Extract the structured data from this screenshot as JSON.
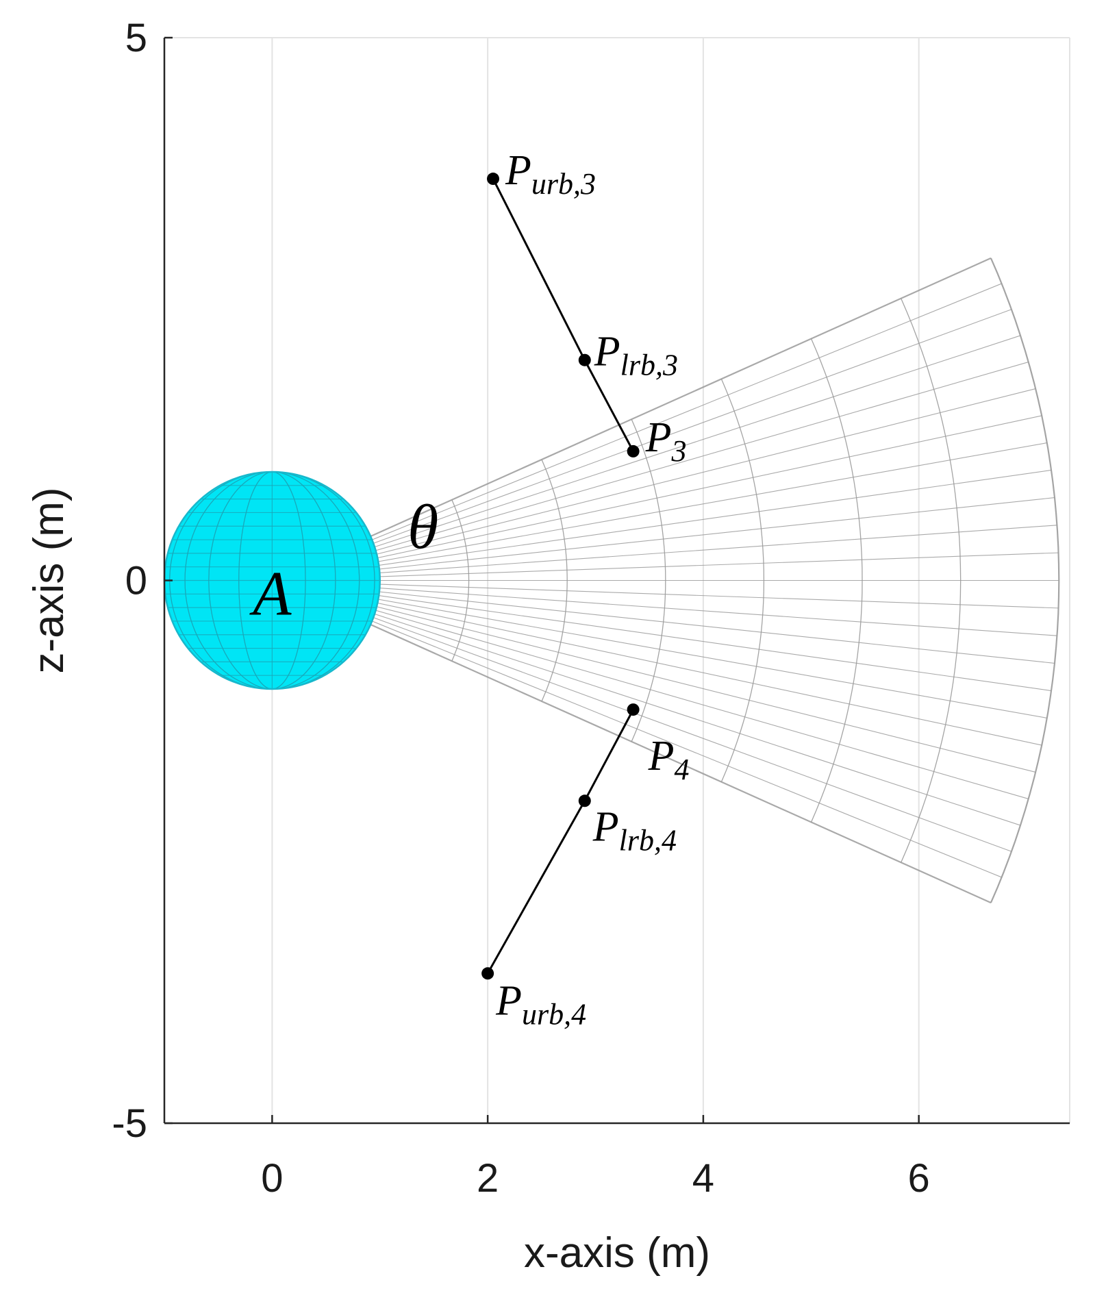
{
  "chart_data": {
    "type": "scatter",
    "title": "",
    "xlabel": "x-axis (m)",
    "ylabel": "z-axis (m)",
    "xlim": [
      -1,
      7.4
    ],
    "ylim": [
      -5,
      5
    ],
    "x_ticks": [
      0,
      2,
      4,
      6
    ],
    "x_tick_labels": [
      "0",
      "2",
      "4",
      "6"
    ],
    "y_ticks": [
      -5,
      0,
      5
    ],
    "y_tick_labels": [
      "-5",
      "0",
      "5"
    ],
    "grid": "vertical",
    "colors": {
      "sphere": "#00e5f5",
      "sphere_grid": "#1aa6b8",
      "cone": "#9a9a9a",
      "points": "#000000",
      "grid": "#e3e3e3"
    },
    "sphere": {
      "label": "A",
      "center": [
        0,
        0
      ],
      "radius": 1.0
    },
    "cone": {
      "label": "θ",
      "apex": [
        0,
        0
      ],
      "half_angle_deg": 24,
      "length": 7.3
    },
    "points": [
      {
        "id": "urb3",
        "label": "P",
        "sub": "urb,3",
        "x": 2.05,
        "z": 3.7
      },
      {
        "id": "lrb3",
        "label": "P",
        "sub": "lrb,3",
        "x": 2.9,
        "z": 2.03
      },
      {
        "id": "p3",
        "label": "P",
        "sub": "3",
        "x": 3.35,
        "z": 1.19
      },
      {
        "id": "p4",
        "label": "P",
        "sub": "4",
        "x": 3.35,
        "z": -1.19
      },
      {
        "id": "lrb4",
        "label": "P",
        "sub": "lrb,4",
        "x": 2.9,
        "z": -2.03
      },
      {
        "id": "urb4",
        "label": "P",
        "sub": "urb,4",
        "x": 2.0,
        "z": -3.62
      }
    ],
    "segments": [
      [
        "urb3",
        "lrb3"
      ],
      [
        "lrb3",
        "p3"
      ],
      [
        "p4",
        "lrb4"
      ],
      [
        "lrb4",
        "urb4"
      ]
    ]
  }
}
